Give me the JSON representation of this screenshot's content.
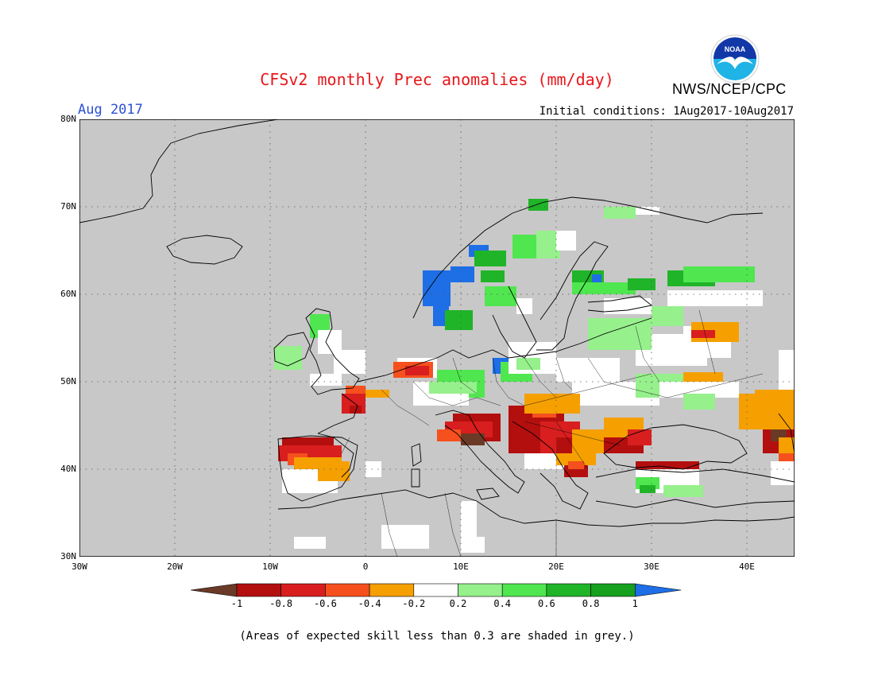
{
  "title": "CFSv2 monthly Prec anomalies (mm/day)",
  "agency": "NWS/NCEP/CPC",
  "logo_text": "NOAA",
  "month_label": "Aug 2017",
  "initial_conditions": "Initial conditions: 1Aug2017-10Aug2017",
  "lat_labels": [
    "80N",
    "70N",
    "60N",
    "50N",
    "40N",
    "30N"
  ],
  "lon_labels": [
    "30W",
    "20W",
    "10W",
    "0",
    "10E",
    "20E",
    "30E",
    "40E"
  ],
  "colorbar": {
    "ticks": [
      "-1",
      "-0.8",
      "-0.6",
      "-0.4",
      "-0.2",
      "0.2",
      "0.4",
      "0.6",
      "0.8",
      "1"
    ],
    "colors": [
      "#6b3a26",
      "#b40f0f",
      "#d81e1e",
      "#f5501e",
      "#f5a000",
      "#ffffff",
      "#96f08c",
      "#50e650",
      "#20b428",
      "#16a01e",
      "#1e6ee6"
    ]
  },
  "note": "(Areas of expected skill less than 0.3 are shaded in grey.)",
  "map_colors": {
    "grey": "#c8c8c8",
    "white": "#ffffff",
    "dkbrown": "#6b3a26",
    "dkred": "#b40f0f",
    "red": "#d81e1e",
    "orred": "#f5501e",
    "orange": "#f5a000",
    "ltgreen": "#96f08c",
    "green": "#50e650",
    "dkgreen": "#20b428",
    "dkgreen2": "#16a01e",
    "blue": "#1e6ee6"
  }
}
